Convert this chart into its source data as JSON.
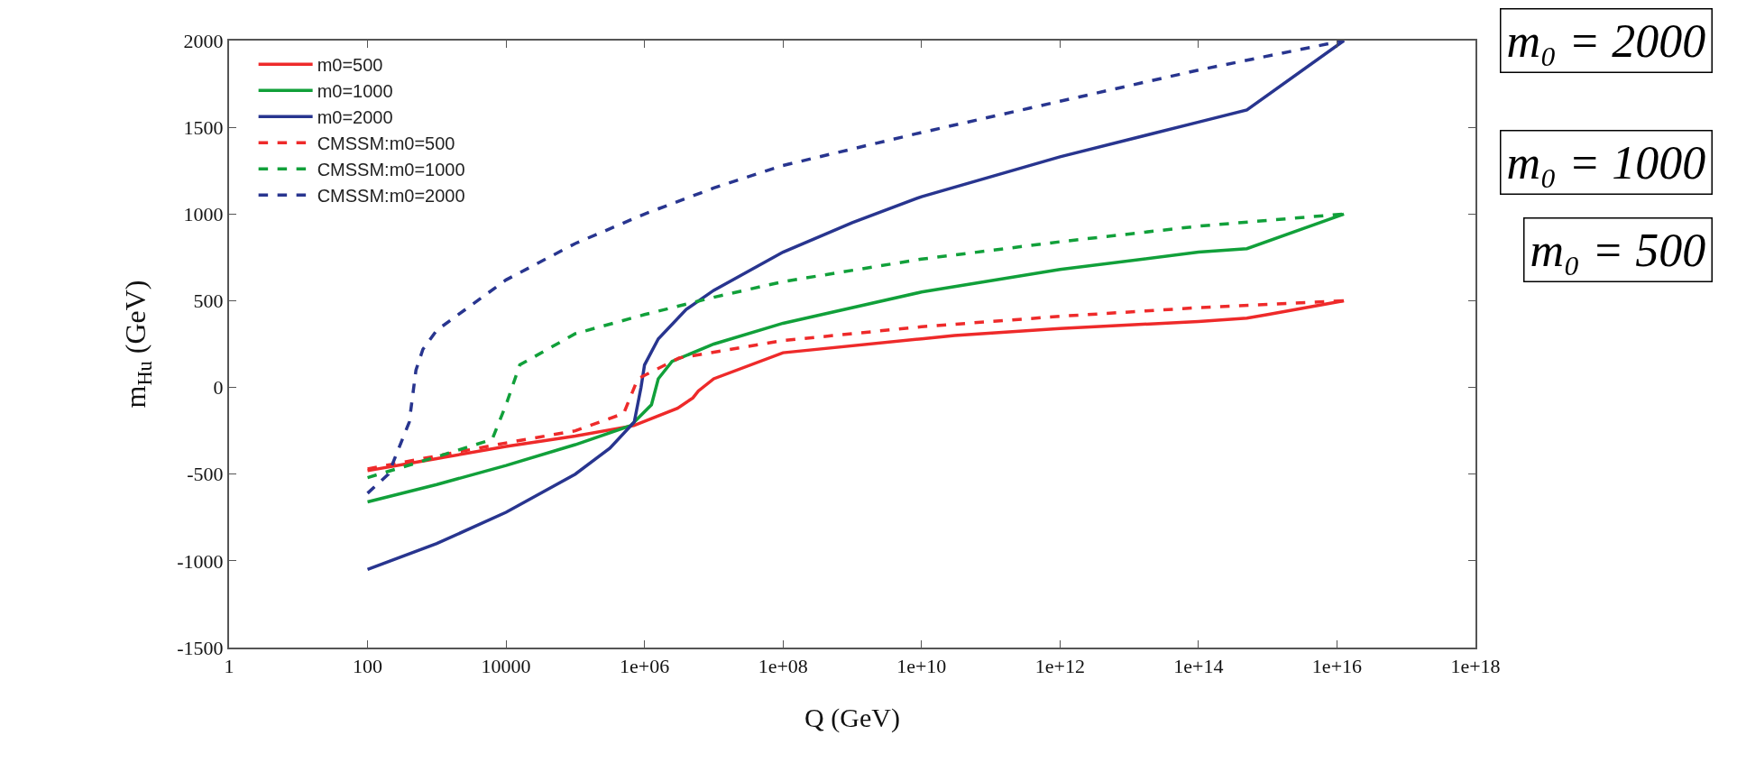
{
  "chart_data": {
    "type": "line",
    "xlabel": "Q (GeV)",
    "ylabel": "m$_{Hu}$ (GeV)",
    "log": "x",
    "xlim": [
      1,
      1e+18
    ],
    "xticks": [
      1,
      100,
      10000,
      {
        "value": 1000000.0,
        "label": "1e+06"
      },
      {
        "value": 100000000.0,
        "label": "1e+08"
      },
      {
        "value": 10000000000.0,
        "label": "1e+10"
      },
      {
        "value": 1000000000000.0,
        "label": "1e+12"
      },
      {
        "value": 100000000000000.0,
        "label": "1e+14"
      },
      {
        "value": 1e+16,
        "label": "1e+16"
      },
      {
        "value": 1e+18,
        "label": "1e+18"
      }
    ],
    "ylim": [
      -1500,
      2000
    ],
    "yticks": [
      -1500,
      -1000,
      -500,
      0,
      500,
      1000,
      1500,
      2000
    ],
    "grid": false,
    "legend": "top left",
    "marker": "none",
    "series": [
      {
        "name": "m0=500",
        "color": "#ee2a2a",
        "line_style": "solid",
        "x": [
          100,
          1000.0,
          10000.0,
          100000.0,
          700000.0,
          3000000.0,
          5000000.0,
          6000000.0,
          10000000.0,
          100000000.0,
          10000000000.0,
          30000000000.0,
          1000000000000.0,
          100000000000000.0,
          500000000000000.0,
          1000000000000000.0,
          1.26e+16
        ],
        "values": [
          -480,
          -410,
          -340,
          -280,
          -220,
          -120,
          -60,
          -20,
          50,
          200,
          280,
          300,
          340,
          380,
          400,
          420,
          500
        ]
      },
      {
        "name": "m0=1000",
        "color": "#11a03a",
        "line_style": "solid",
        "x": [
          100,
          1000.0,
          10000.0,
          100000.0,
          630000.0,
          1260000.0,
          1580000.0,
          2500000.0,
          10000000.0,
          100000000.0,
          10000000000.0,
          1000000000000.0,
          100000000000000.0,
          500000000000000.0,
          1.26e+16
        ],
        "values": [
          -660,
          -560,
          -450,
          -330,
          -220,
          -100,
          50,
          150,
          250,
          370,
          550,
          680,
          780,
          800,
          1000
        ]
      },
      {
        "name": "m0=2000",
        "color": "#28358f",
        "line_style": "solid",
        "x": [
          100,
          1000.0,
          10000.0,
          100000.0,
          316000.0,
          710000.0,
          890000.0,
          1000000.0,
          1580000.0,
          4000000.0,
          10000000.0,
          100000000.0,
          1000000000.0,
          10000000000.0,
          1000000000000.0,
          100000000000000.0,
          500000000000000.0,
          1.26e+16
        ],
        "values": [
          -1050,
          -900,
          -720,
          -500,
          -350,
          -200,
          0,
          130,
          280,
          450,
          560,
          780,
          950,
          1100,
          1330,
          1530,
          1600,
          2000
        ]
      },
      {
        "name": "CMSSM:m0=500",
        "color": "#ee2a2a",
        "line_style": "dashed",
        "x": [
          100,
          10000.0,
          100000.0,
          500000.0,
          800000.0,
          3160000.0,
          100000000.0,
          10000000000.0,
          1000000000000.0,
          100000000000000.0,
          1.26e+16
        ],
        "values": [
          -470,
          -320,
          -250,
          -150,
          50,
          170,
          270,
          350,
          410,
          460,
          500
        ]
      },
      {
        "name": "CMSSM:m0=1000",
        "color": "#11a03a",
        "line_style": "dashed",
        "x": [
          100,
          1000.0,
          6300.0,
          10000.0,
          15800.0,
          100000.0,
          1000000.0,
          10000000.0,
          100000000.0,
          10000000000.0,
          1000000000000.0,
          100000000000000.0,
          1.26e+16
        ],
        "values": [
          -520,
          -400,
          -300,
          -100,
          130,
          310,
          420,
          520,
          610,
          740,
          840,
          930,
          1000
        ]
      },
      {
        "name": "CMSSM:m0=2000",
        "color": "#28358f",
        "line_style": "dashed",
        "x": [
          100,
          200,
          400,
          500,
          630,
          1000.0,
          10000.0,
          100000.0,
          1000000.0,
          10000000.0,
          100000000.0,
          10000000000.0,
          1000000000000.0,
          100000000000000.0,
          1.26e+16
        ],
        "values": [
          -610,
          -500,
          -200,
          100,
          220,
          330,
          620,
          830,
          1000,
          1150,
          1280,
          1470,
          1650,
          1830,
          2000
        ]
      }
    ],
    "annotations": [
      "m₀ = 2000",
      "m₀ = 1000",
      "m₀ = 500"
    ]
  }
}
